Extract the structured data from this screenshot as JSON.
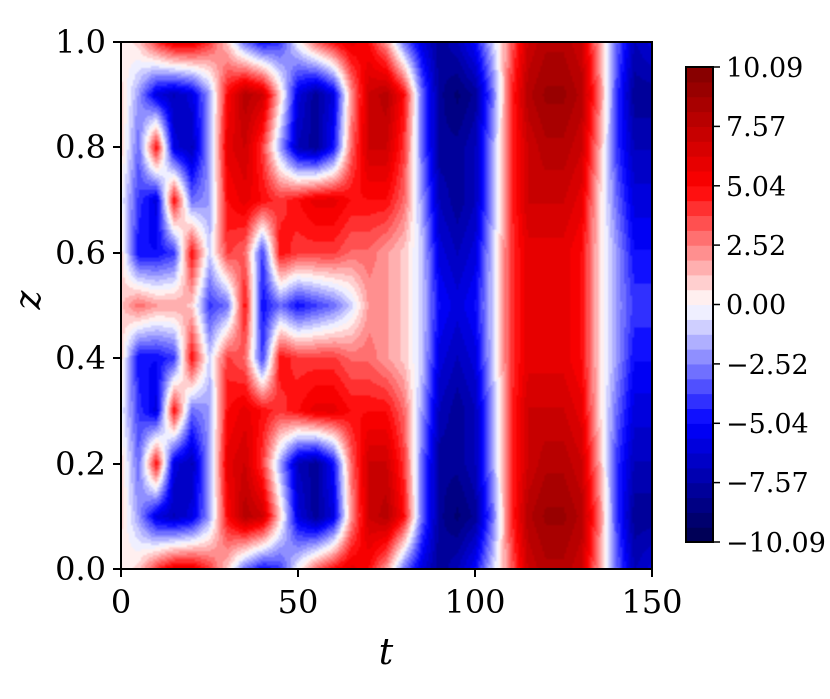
{
  "chart_data": {
    "type": "heatmap",
    "plot_style": "filled contour",
    "xlabel": "t",
    "ylabel": "z",
    "xlim": [
      0,
      150
    ],
    "ylim": [
      0.0,
      1.0
    ],
    "x_ticks": [
      "0",
      "50",
      "100",
      "150"
    ],
    "y_ticks": [
      "0.0",
      "0.2",
      "0.4",
      "0.6",
      "0.8",
      "1.0"
    ],
    "colormap": "seismic",
    "color_range": [
      -10.09,
      10.09
    ],
    "colorbar_ticks": [
      "10.09",
      "7.57",
      "5.04",
      "2.52",
      "0.00",
      "−2.52",
      "−5.04",
      "−7.57",
      "−10.09"
    ],
    "colorbar_levels": 32,
    "field": {
      "note_on_pattern": "values digitized from visible bands",
      "t": [
        0,
        5,
        10,
        15,
        20,
        25,
        30,
        35,
        40,
        45,
        50,
        55,
        60,
        65,
        70,
        75,
        80,
        85,
        90,
        95,
        100,
        105,
        110,
        115,
        120,
        125,
        130,
        135,
        140,
        145,
        150
      ],
      "z": [
        0.0,
        0.1,
        0.2,
        0.3,
        0.4,
        0.5,
        0.6,
        0.7,
        0.8,
        0.9,
        1.0
      ],
      "values": [
        [
          0,
          1,
          4,
          6,
          6,
          4,
          1,
          -3,
          -5,
          -4,
          0,
          3,
          5,
          6,
          5,
          2,
          -3,
          -6,
          -8,
          -7,
          -5,
          -1,
          3,
          7,
          8,
          8,
          7,
          2,
          -3,
          -7,
          -6
        ],
        [
          1,
          -2,
          -6,
          -7,
          -6,
          -2,
          5,
          8,
          7,
          1,
          -6,
          -8,
          -6,
          2,
          7,
          8,
          5,
          -3,
          -8,
          -9,
          -8,
          -3,
          4,
          8,
          9,
          9,
          8,
          3,
          -4,
          -8,
          -8
        ],
        [
          1,
          -3,
          5,
          -6,
          -7,
          -2,
          6,
          7,
          4,
          -2,
          -7,
          -8,
          -5,
          3,
          7,
          7,
          4,
          -3,
          -8,
          -8,
          -7,
          -2,
          4,
          7,
          8,
          8,
          7,
          2,
          -4,
          -7,
          -7
        ],
        [
          0,
          -4,
          -6,
          5,
          -3,
          -2,
          5,
          6,
          5,
          4,
          5,
          6,
          6,
          5,
          5,
          5,
          3,
          -2,
          -7,
          -8,
          -7,
          -2,
          4,
          7,
          7,
          7,
          6,
          1,
          -3,
          -6,
          -6
        ],
        [
          1,
          -5,
          -5,
          -4,
          5,
          -1,
          4,
          3,
          -4,
          5,
          4,
          4,
          4,
          3,
          3,
          2,
          1,
          -1,
          -6,
          -7,
          -6,
          -1,
          4,
          6,
          6,
          6,
          5,
          1,
          -2,
          -5,
          -5
        ],
        [
          1,
          3,
          2,
          2,
          1,
          -4,
          -3,
          5,
          -5,
          -3,
          -5,
          -4,
          -3,
          -1,
          2,
          2,
          1,
          -1,
          -5,
          -6,
          -5,
          -1,
          4,
          6,
          6,
          6,
          5,
          1,
          -2,
          -4,
          -4
        ],
        [
          1,
          -5,
          -5,
          -4,
          5,
          -1,
          4,
          3,
          -4,
          5,
          4,
          4,
          4,
          3,
          3,
          2,
          1,
          -1,
          -6,
          -7,
          -6,
          -1,
          4,
          6,
          6,
          6,
          5,
          1,
          -2,
          -5,
          -5
        ],
        [
          0,
          -4,
          -6,
          5,
          -3,
          -2,
          5,
          6,
          5,
          4,
          5,
          6,
          6,
          5,
          5,
          5,
          3,
          -2,
          -7,
          -8,
          -7,
          -2,
          4,
          7,
          7,
          7,
          6,
          1,
          -3,
          -6,
          -6
        ],
        [
          1,
          -3,
          5,
          -6,
          -7,
          -2,
          6,
          7,
          4,
          -2,
          -7,
          -8,
          -5,
          3,
          7,
          7,
          4,
          -3,
          -8,
          -8,
          -7,
          -2,
          4,
          7,
          8,
          8,
          7,
          2,
          -4,
          -7,
          -7
        ],
        [
          1,
          -2,
          -6,
          -7,
          -6,
          -2,
          5,
          8,
          7,
          1,
          -6,
          -8,
          -6,
          2,
          7,
          8,
          5,
          -3,
          -8,
          -9,
          -8,
          -3,
          4,
          8,
          9,
          9,
          8,
          3,
          -4,
          -8,
          -8
        ],
        [
          0,
          1,
          4,
          6,
          6,
          4,
          1,
          -3,
          -5,
          -4,
          0,
          3,
          5,
          6,
          5,
          2,
          -3,
          -6,
          -8,
          -7,
          -5,
          -1,
          3,
          7,
          8,
          8,
          7,
          2,
          -3,
          -7,
          -6
        ]
      ]
    }
  }
}
